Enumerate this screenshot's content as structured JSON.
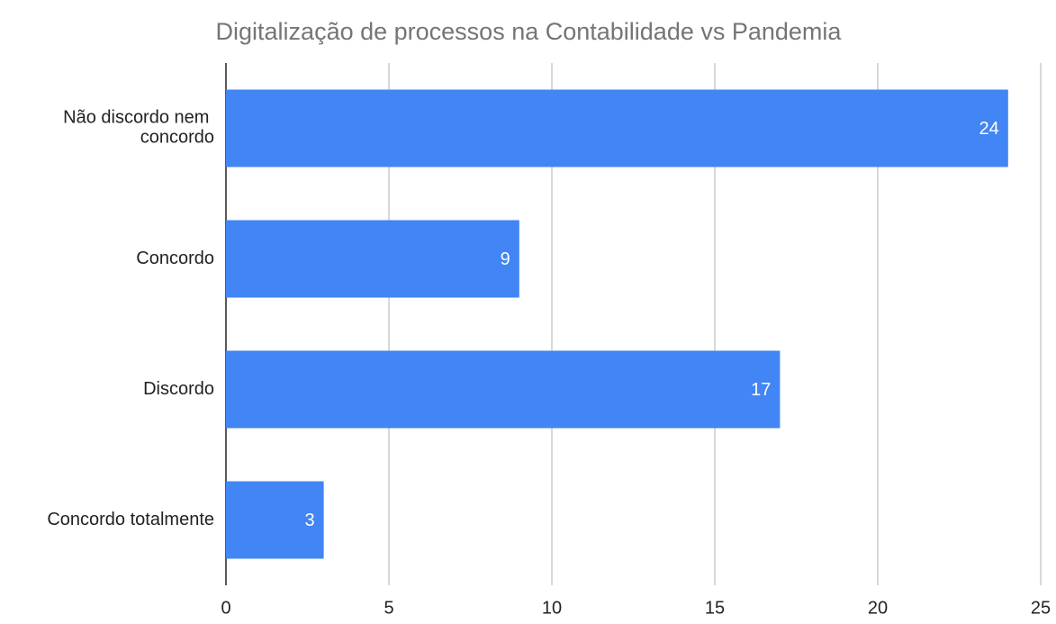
{
  "chart_data": {
    "type": "bar",
    "orientation": "horizontal",
    "title": "Digitalização de processos na Contabilidade vs Pandemia",
    "categories": [
      "Não discordo nem concordo",
      "Concordo",
      "Discordo",
      "Concordo totalmente"
    ],
    "values": [
      24,
      9,
      17,
      3
    ],
    "color": "#4285f4",
    "xlim": [
      0,
      25
    ],
    "xticks": [
      0,
      5,
      10,
      15,
      20,
      25
    ],
    "grid": true
  }
}
